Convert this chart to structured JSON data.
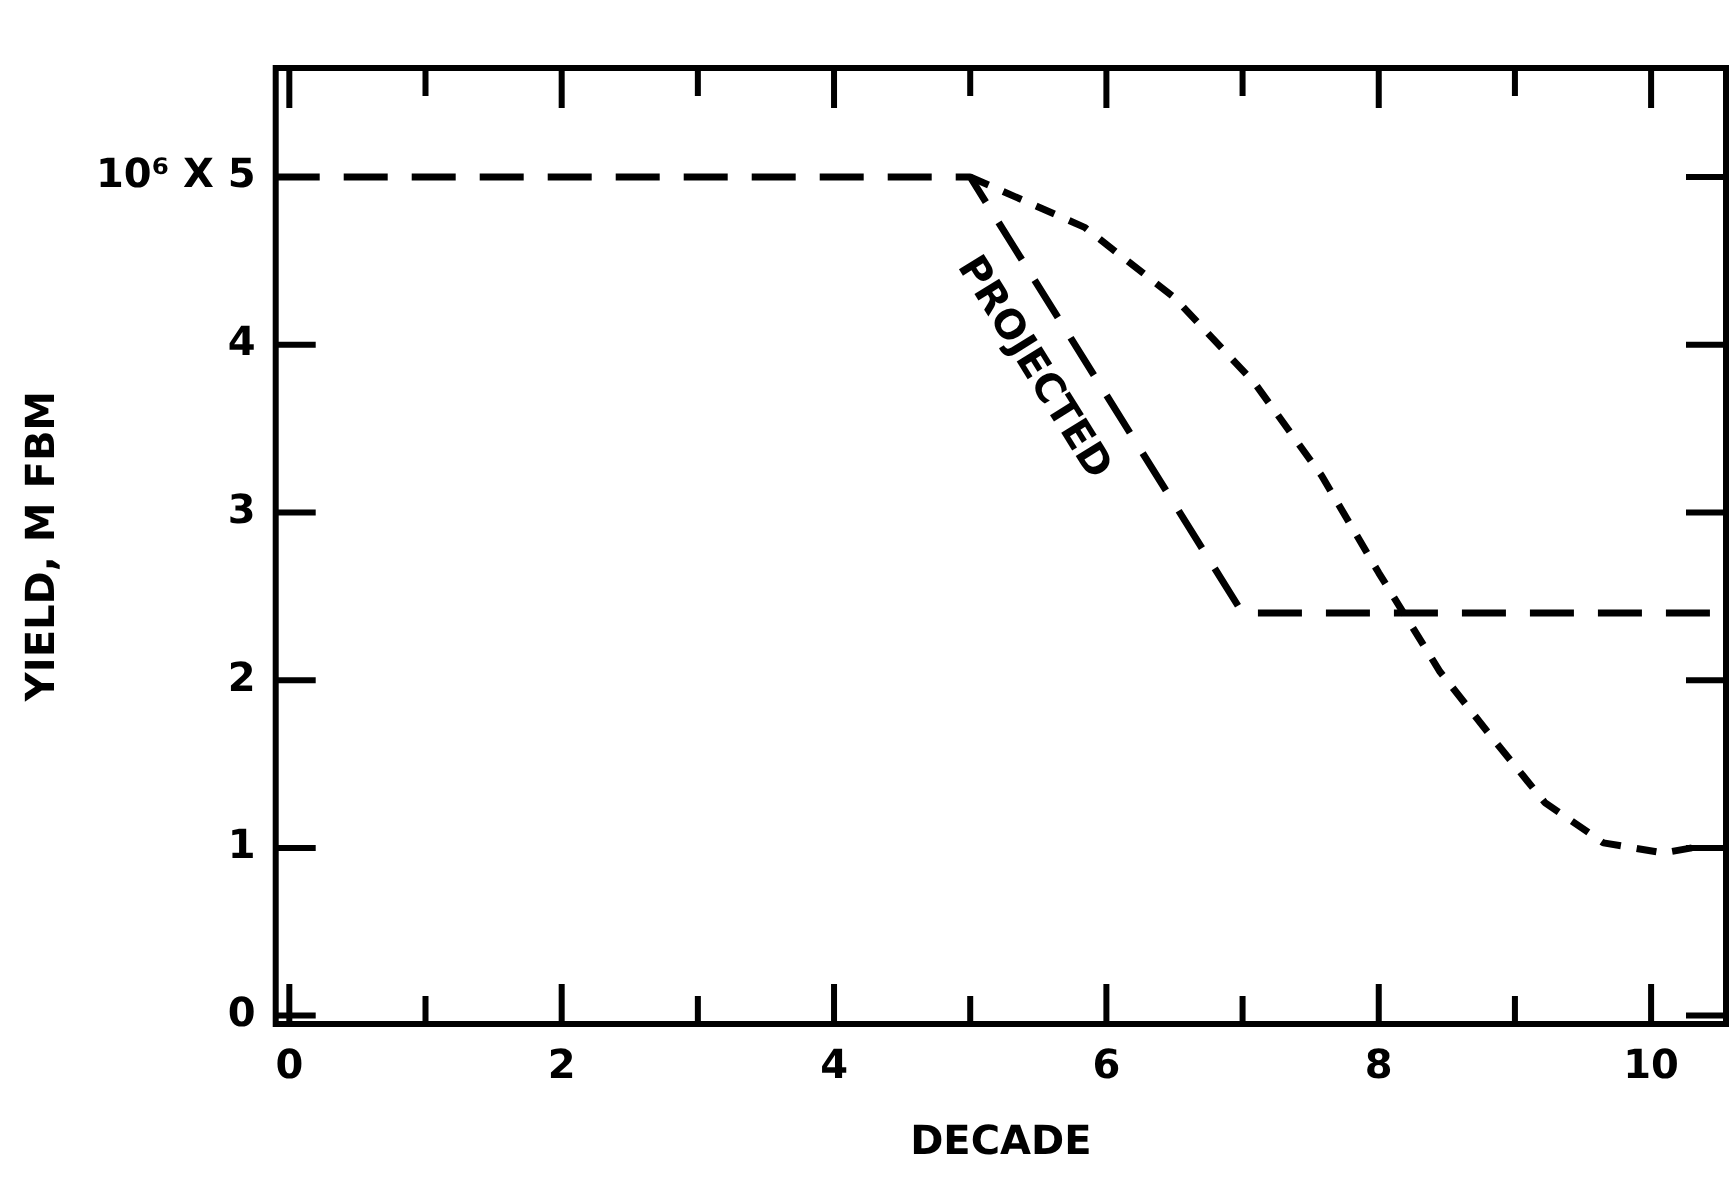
{
  "chart_data": {
    "type": "line",
    "xlabel": "DECADE",
    "ylabel": "YIELD, M FBM",
    "xlim": [
      -0.1,
      10.55
    ],
    "ylim": [
      -0.05,
      5.65
    ],
    "xticks": [
      0,
      {
        "value": 1,
        "label": null
      },
      2,
      {
        "value": 3,
        "label": null
      },
      4,
      {
        "value": 5,
        "label": null
      },
      6,
      {
        "value": 7,
        "label": null
      },
      8,
      {
        "value": 9,
        "label": null
      },
      10
    ],
    "yticks": [
      0,
      1,
      2,
      3,
      4,
      {
        "value": 5,
        "label": "10⁶ X 5"
      }
    ],
    "line_style": "dashed",
    "marker": "none",
    "series": [
      {
        "color": "#000000",
        "x": [
          -0.1,
          5,
          7,
          10.55
        ],
        "values": [
          5,
          5,
          2.4,
          2.4
        ]
      },
      {
        "color": "#000000",
        "x": [
          5,
          5.84,
          6.5,
          7.09,
          7.58,
          8.0,
          8.45,
          8.83,
          9.22,
          9.65,
          10.09,
          10.3
        ],
        "values": [
          5,
          4.7,
          4.28,
          3.77,
          3.22,
          2.64,
          2.05,
          1.66,
          1.27,
          1.03,
          0.97,
          1.0
        ]
      }
    ],
    "annotations": [
      "PROJECTED"
    ]
  }
}
